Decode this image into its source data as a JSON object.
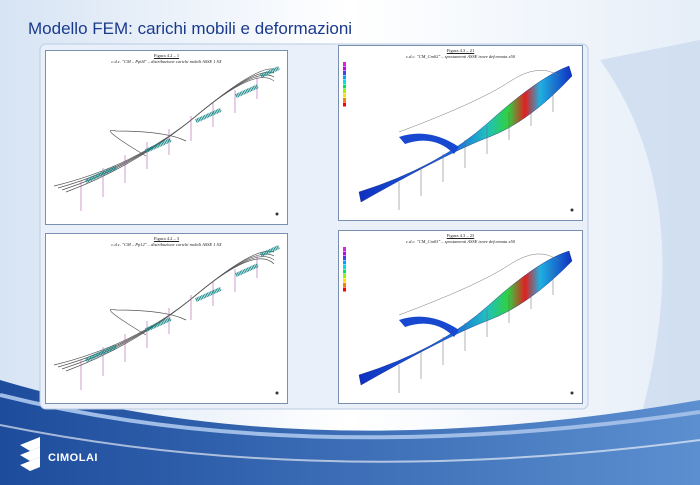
{
  "header": {
    "title": "Modello FEM: carichi mobili e deformazioni"
  },
  "panels": [
    {
      "figure": "Figura 4.2 – 1",
      "caption": "c.d.c. \"CM – Pp04\" – distribuzione carichi mobili ASSE 1 SX"
    },
    {
      "figure": "Figura 4.3 – 21",
      "caption": "c.d.c. \"CM_Cm02\" – spostamenti ASSE trave deformata x50"
    },
    {
      "figure": "Figura 4.2 – 3",
      "caption": "c.d.c. \"CM – Pp12\" – distribuzione carichi mobili ASSE 1 SX"
    },
    {
      "figure": "Figura 4.3 – 23",
      "caption": "c.d.c. \"CM_Cm03\" – spostamenti ASSE trave deformata x50"
    }
  ],
  "logo": {
    "text": "CIMOLAI"
  }
}
